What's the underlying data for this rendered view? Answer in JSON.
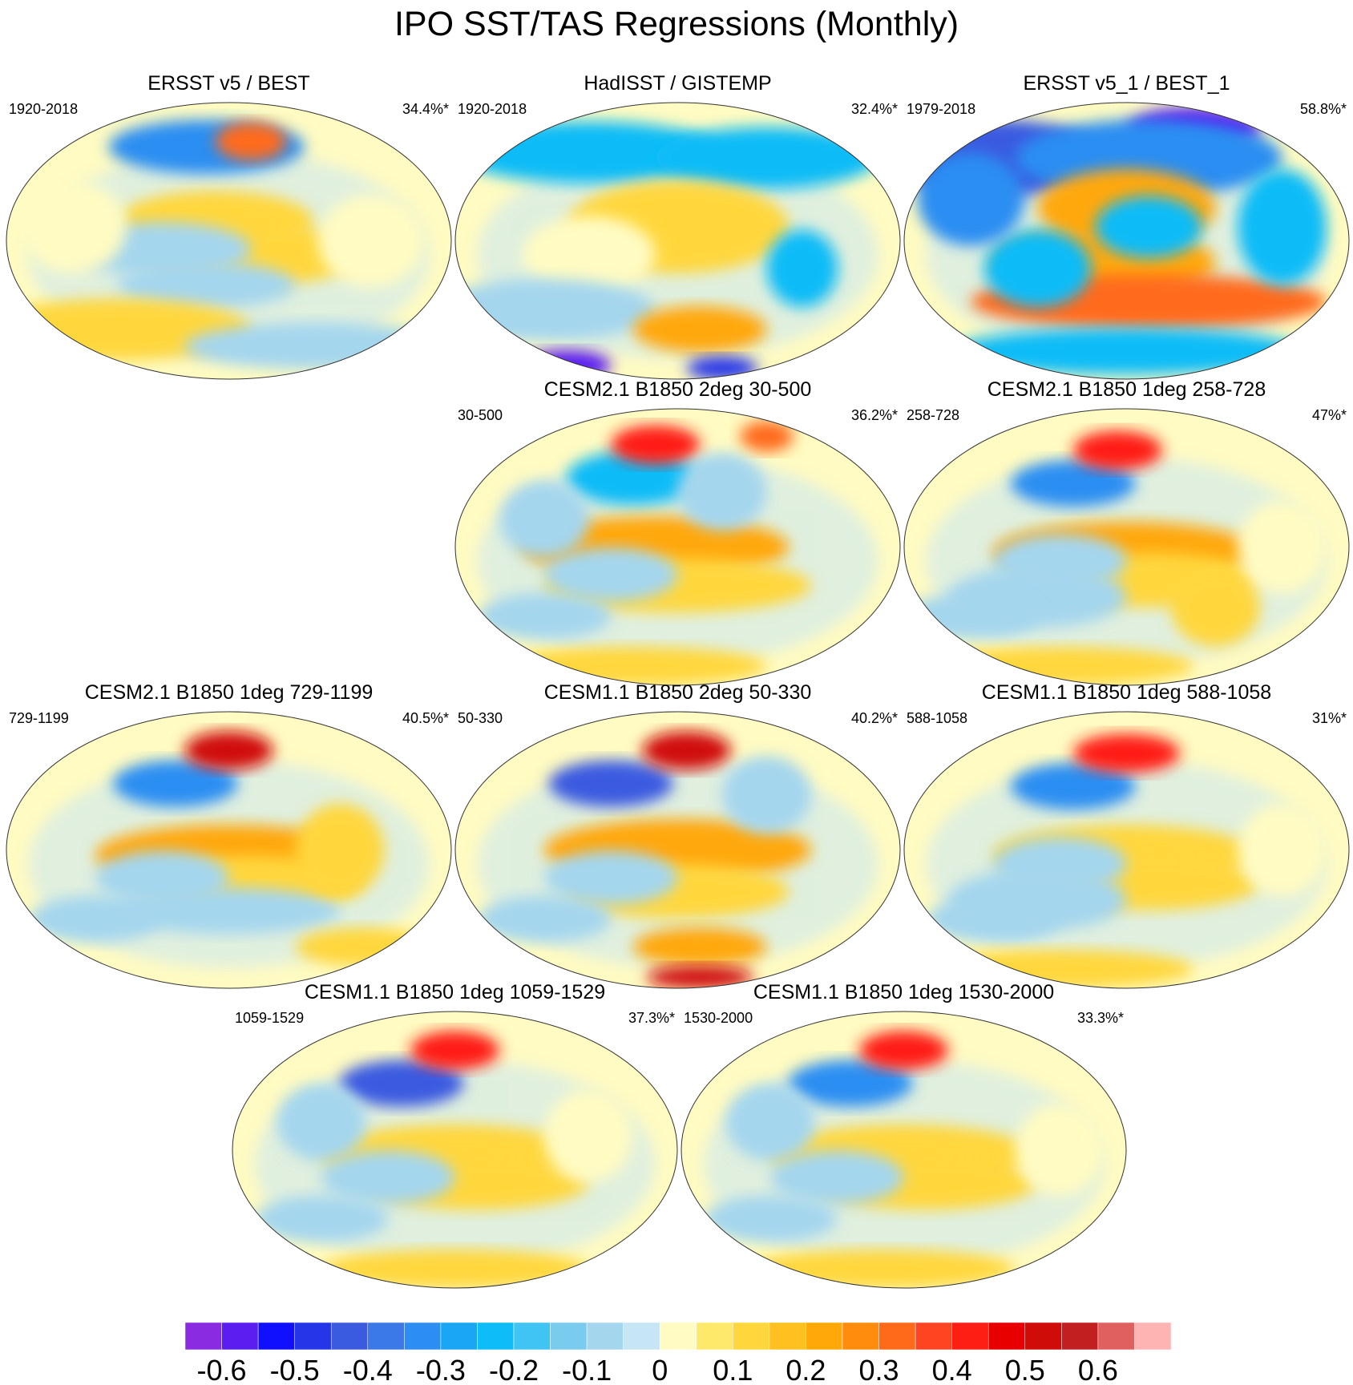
{
  "chart_data": {
    "type": "heatmap",
    "title": "IPO SST/TAS Regressions (Monthly)",
    "projection": "global map",
    "panels": [
      {
        "title": "ERSST v5 / BEST",
        "period": "1920-2018",
        "pct": "34.4%*",
        "blobs": [
          [
            0.45,
            0.16,
            0.22,
            0.07,
            -3
          ],
          [
            0.55,
            0.14,
            0.08,
            0.05,
            3
          ],
          [
            0.47,
            0.43,
            0.22,
            0.08,
            1
          ],
          [
            0.55,
            0.55,
            0.25,
            0.08,
            1
          ],
          [
            0.35,
            0.53,
            0.2,
            0.07,
            -1
          ],
          [
            0.45,
            0.66,
            0.2,
            0.06,
            -1
          ],
          [
            0.15,
            0.45,
            0.12,
            0.12,
            0
          ],
          [
            0.82,
            0.5,
            0.12,
            0.12,
            0
          ],
          [
            0.25,
            0.82,
            0.3,
            0.08,
            1
          ],
          [
            0.7,
            0.88,
            0.3,
            0.06,
            -1
          ]
        ]
      },
      {
        "title": "HadISST / GISTEMP",
        "period": "1920-2018",
        "pct": "32.4%*",
        "blobs": [
          [
            0.3,
            0.18,
            0.3,
            0.08,
            -2
          ],
          [
            0.7,
            0.2,
            0.25,
            0.08,
            -2
          ],
          [
            0.5,
            0.45,
            0.25,
            0.12,
            1
          ],
          [
            0.3,
            0.55,
            0.15,
            0.1,
            0
          ],
          [
            0.2,
            0.75,
            0.25,
            0.08,
            -1
          ],
          [
            0.55,
            0.82,
            0.15,
            0.06,
            2
          ],
          [
            0.78,
            0.6,
            0.08,
            0.1,
            -2
          ],
          [
            0.25,
            0.95,
            0.1,
            0.04,
            -6
          ],
          [
            0.6,
            0.96,
            0.08,
            0.03,
            -5
          ]
        ]
      },
      {
        "title": "ERSST v5_1 / BEST_1",
        "period": "1979-2018",
        "pct": "58.8%*",
        "blobs": [
          [
            0.2,
            0.2,
            0.25,
            0.1,
            -4
          ],
          [
            0.65,
            0.1,
            0.15,
            0.06,
            -6
          ],
          [
            0.55,
            0.2,
            0.3,
            0.1,
            -3
          ],
          [
            0.5,
            0.38,
            0.2,
            0.1,
            2
          ],
          [
            0.45,
            0.58,
            0.25,
            0.09,
            2
          ],
          [
            0.55,
            0.45,
            0.12,
            0.08,
            -2
          ],
          [
            0.55,
            0.72,
            0.4,
            0.07,
            3
          ],
          [
            0.3,
            0.6,
            0.12,
            0.1,
            -2
          ],
          [
            0.15,
            0.35,
            0.12,
            0.12,
            -3
          ],
          [
            0.85,
            0.45,
            0.1,
            0.15,
            -2
          ],
          [
            0.5,
            0.9,
            0.4,
            0.06,
            -2
          ]
        ]
      },
      {
        "title": "CESM2.1 B1850 2deg 30-500",
        "period": "30-500",
        "pct": "36.2%*",
        "blobs": [
          [
            0.4,
            0.25,
            0.15,
            0.07,
            -2
          ],
          [
            0.45,
            0.13,
            0.1,
            0.05,
            4
          ],
          [
            0.7,
            0.1,
            0.06,
            0.04,
            3
          ],
          [
            0.45,
            0.5,
            0.3,
            0.08,
            2
          ],
          [
            0.5,
            0.64,
            0.3,
            0.07,
            1
          ],
          [
            0.35,
            0.6,
            0.15,
            0.07,
            -1
          ],
          [
            0.2,
            0.4,
            0.1,
            0.1,
            -1
          ],
          [
            0.6,
            0.3,
            0.1,
            0.1,
            -1
          ],
          [
            0.4,
            0.93,
            0.3,
            0.05,
            1
          ],
          [
            0.2,
            0.75,
            0.15,
            0.06,
            -1
          ]
        ]
      },
      {
        "title": "CESM2.1 B1850 1deg 258-728",
        "period": "258-728",
        "pct": "47%*",
        "blobs": [
          [
            0.38,
            0.27,
            0.14,
            0.06,
            -3
          ],
          [
            0.48,
            0.15,
            0.1,
            0.05,
            4
          ],
          [
            0.5,
            0.52,
            0.3,
            0.08,
            2
          ],
          [
            0.55,
            0.62,
            0.25,
            0.07,
            1
          ],
          [
            0.35,
            0.55,
            0.15,
            0.07,
            -1
          ],
          [
            0.3,
            0.68,
            0.2,
            0.08,
            -1
          ],
          [
            0.7,
            0.72,
            0.1,
            0.1,
            1
          ],
          [
            0.85,
            0.5,
            0.1,
            0.12,
            0
          ],
          [
            0.35,
            0.93,
            0.3,
            0.05,
            1
          ],
          [
            0.15,
            0.75,
            0.15,
            0.06,
            -1
          ]
        ]
      },
      {
        "title": "CESM2.1 B1850 1deg 729-1199",
        "period": "729-1199",
        "pct": "40.5%*",
        "blobs": [
          [
            0.38,
            0.26,
            0.14,
            0.06,
            -3
          ],
          [
            0.5,
            0.14,
            0.1,
            0.05,
            5
          ],
          [
            0.5,
            0.52,
            0.3,
            0.08,
            2
          ],
          [
            0.55,
            0.62,
            0.25,
            0.07,
            1
          ],
          [
            0.35,
            0.6,
            0.15,
            0.07,
            -1
          ],
          [
            0.5,
            0.72,
            0.25,
            0.06,
            -1
          ],
          [
            0.75,
            0.5,
            0.1,
            0.12,
            1
          ],
          [
            0.8,
            0.85,
            0.15,
            0.05,
            1
          ],
          [
            0.2,
            0.75,
            0.15,
            0.06,
            -1
          ]
        ]
      },
      {
        "title": "CESM1.1 B1850 2deg 50-330",
        "period": "50-330",
        "pct": "40.2%*",
        "blobs": [
          [
            0.35,
            0.26,
            0.14,
            0.06,
            -4
          ],
          [
            0.52,
            0.14,
            0.1,
            0.05,
            5
          ],
          [
            0.5,
            0.5,
            0.3,
            0.08,
            2
          ],
          [
            0.5,
            0.65,
            0.25,
            0.07,
            1
          ],
          [
            0.35,
            0.6,
            0.15,
            0.07,
            -1
          ],
          [
            0.55,
            0.85,
            0.15,
            0.05,
            2
          ],
          [
            0.55,
            0.96,
            0.12,
            0.03,
            5
          ],
          [
            0.7,
            0.3,
            0.1,
            0.1,
            -1
          ],
          [
            0.2,
            0.75,
            0.15,
            0.06,
            -1
          ]
        ]
      },
      {
        "title": "CESM1.1 B1850 1deg 588-1058",
        "period": "588-1058",
        "pct": "31%*",
        "blobs": [
          [
            0.38,
            0.27,
            0.14,
            0.06,
            -3
          ],
          [
            0.5,
            0.15,
            0.12,
            0.05,
            4
          ],
          [
            0.5,
            0.52,
            0.3,
            0.08,
            1
          ],
          [
            0.55,
            0.62,
            0.25,
            0.07,
            1
          ],
          [
            0.35,
            0.55,
            0.15,
            0.07,
            -1
          ],
          [
            0.3,
            0.68,
            0.2,
            0.08,
            -1
          ],
          [
            0.85,
            0.5,
            0.1,
            0.12,
            0
          ],
          [
            0.2,
            0.75,
            0.15,
            0.06,
            -1
          ],
          [
            0.35,
            0.93,
            0.3,
            0.05,
            1
          ]
        ]
      },
      {
        "title": "CESM1.1 B1850 1deg 1059-1529",
        "period": "1059-1529",
        "pct": "37.3%*",
        "blobs": [
          [
            0.38,
            0.26,
            0.14,
            0.06,
            -4
          ],
          [
            0.5,
            0.14,
            0.1,
            0.05,
            4
          ],
          [
            0.5,
            0.52,
            0.3,
            0.08,
            1
          ],
          [
            0.55,
            0.62,
            0.25,
            0.07,
            1
          ],
          [
            0.35,
            0.6,
            0.15,
            0.07,
            -1
          ],
          [
            0.2,
            0.4,
            0.1,
            0.1,
            -1
          ],
          [
            0.8,
            0.45,
            0.1,
            0.12,
            0
          ],
          [
            0.2,
            0.75,
            0.15,
            0.06,
            -1
          ],
          [
            0.5,
            0.93,
            0.3,
            0.05,
            1
          ]
        ]
      },
      {
        "title": "CESM1.1 B1850 1deg 1530-2000",
        "period": "1530-2000",
        "pct": "33.3%*",
        "blobs": [
          [
            0.38,
            0.26,
            0.14,
            0.06,
            -3
          ],
          [
            0.5,
            0.14,
            0.1,
            0.05,
            4
          ],
          [
            0.5,
            0.52,
            0.3,
            0.08,
            1
          ],
          [
            0.55,
            0.62,
            0.25,
            0.07,
            1
          ],
          [
            0.35,
            0.6,
            0.15,
            0.07,
            -1
          ],
          [
            0.2,
            0.4,
            0.1,
            0.1,
            -1
          ],
          [
            0.85,
            0.5,
            0.1,
            0.12,
            0
          ],
          [
            0.2,
            0.75,
            0.15,
            0.06,
            -1
          ],
          [
            0.45,
            0.93,
            0.3,
            0.05,
            1
          ]
        ]
      }
    ],
    "colorbar": {
      "colors": [
        "#8a2be2",
        "#5a1ef0",
        "#1010ff",
        "#2535e8",
        "#3a5ae0",
        "#3b78e8",
        "#2c8ef2",
        "#1aa6f5",
        "#0ebcf7",
        "#40c4f3",
        "#79ccee",
        "#a4d6ee",
        "#c6e6f6",
        "#fffbc2",
        "#ffe96a",
        "#ffd73c",
        "#ffc020",
        "#ffa808",
        "#ff8c0c",
        "#ff6a1a",
        "#ff4422",
        "#ff1e14",
        "#e80000",
        "#d00c08",
        "#c22020",
        "#e06060",
        "#ffb4b4"
      ],
      "tick_labels": [
        "-0.6",
        "-0.5",
        "-0.4",
        "-0.3",
        "-0.2",
        "-0.1",
        "0",
        "0.1",
        "0.2",
        "0.3",
        "0.4",
        "0.5",
        "0.6"
      ],
      "tick_values": [
        -0.6,
        -0.5,
        -0.4,
        -0.3,
        -0.2,
        -0.1,
        0,
        0.1,
        0.2,
        0.3,
        0.4,
        0.5,
        0.6
      ],
      "range": [
        -0.65,
        0.7
      ]
    }
  }
}
